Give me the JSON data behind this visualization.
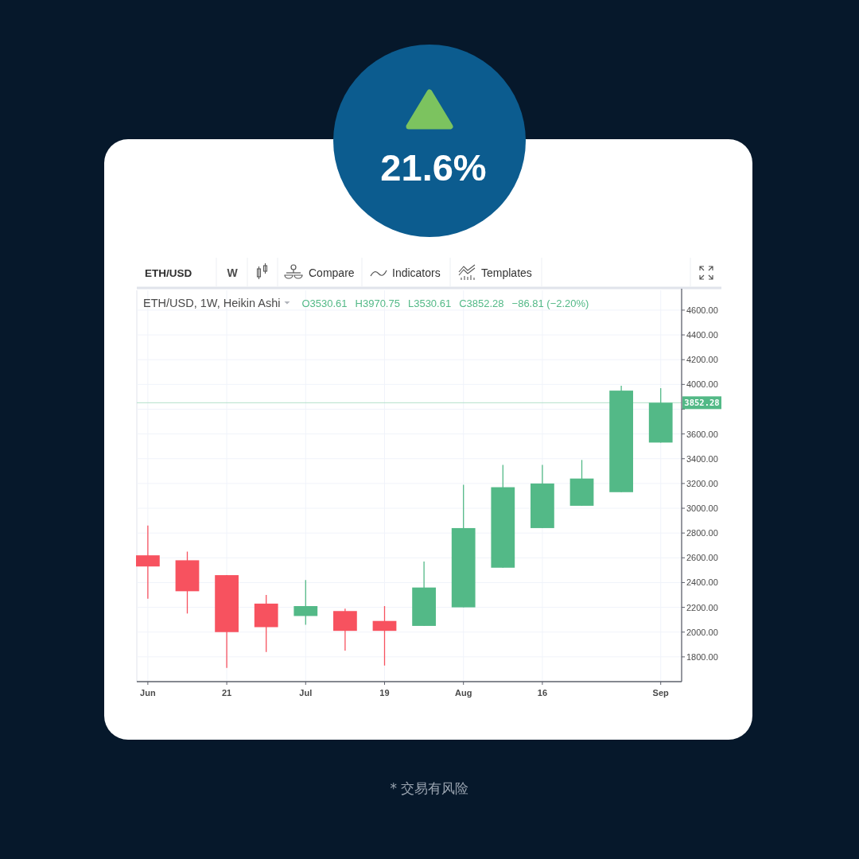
{
  "chart_data": {
    "type": "candlestick",
    "title": "ETH/USD, 1W, Heikin Ashi",
    "categories": [
      "Jun",
      null,
      "21",
      null,
      "Jul",
      null,
      "19",
      null,
      "Aug",
      null,
      "16",
      null,
      null,
      "Sep"
    ],
    "ohlc": [
      [
        2620,
        2860,
        2270,
        2530
      ],
      [
        2580,
        2650,
        2150,
        2330
      ],
      [
        2460,
        2460,
        1710,
        2000
      ],
      [
        2230,
        2300,
        1840,
        2040
      ],
      [
        2130,
        2420,
        2060,
        2210
      ],
      [
        2170,
        2190,
        1850,
        2010
      ],
      [
        2090,
        2210,
        1730,
        2010
      ],
      [
        2050,
        2570,
        2050,
        2360
      ],
      [
        2200,
        3190,
        2200,
        2840
      ],
      [
        2520,
        3350,
        2520,
        3170
      ],
      [
        2840,
        3350,
        2840,
        3200
      ],
      [
        3020,
        3390,
        3020,
        3240
      ],
      [
        3130,
        3990,
        3130,
        3950
      ],
      [
        3530.61,
        3970.75,
        3530.61,
        3852.28
      ]
    ],
    "colors": [
      "#f7525f",
      "#f7525f",
      "#f7525f",
      "#f7525f",
      "#53b987",
      "#f7525f",
      "#f7525f",
      "#53b987",
      "#53b987",
      "#53b987",
      "#53b987",
      "#53b987",
      "#53b987",
      "#53b987"
    ],
    "ylim": [
      1600,
      4760
    ],
    "yticks": [
      {
        "value": 1800,
        "label": "1800.00"
      },
      {
        "value": 2000,
        "label": "2000.00"
      },
      {
        "value": 2200,
        "label": "2200.00"
      },
      {
        "value": 2400,
        "label": "2400.00"
      },
      {
        "value": 2600,
        "label": "2600.00"
      },
      {
        "value": 2800,
        "label": "2800.00"
      },
      {
        "value": 3000,
        "label": "3000.00"
      },
      {
        "value": 3200,
        "label": "3200.00"
      },
      {
        "value": 3400,
        "label": "3400.00"
      },
      {
        "value": 3600,
        "label": "3600.00"
      },
      {
        "value": 3800,
        "label": null
      },
      {
        "value": 4000,
        "label": "4000.00"
      },
      {
        "value": 4200,
        "label": "4200.00"
      },
      {
        "value": 4400,
        "label": "4400.00"
      },
      {
        "value": 4600,
        "label": "4600.00"
      }
    ],
    "grid": true,
    "ref_lines": [
      {
        "axis": "y",
        "value": 3852.28,
        "label": "3852.28",
        "color": "#b2e0c9"
      }
    ],
    "annotations": [
      "O3530.61",
      "H3970.75",
      "L3530.61",
      "C3852.28",
      "−86.81 (−2.20%)",
      "21.6%",
      "ETH/USD",
      "W",
      "Compare",
      "Indicators",
      "Templates",
      "* 交易有风险"
    ]
  }
}
